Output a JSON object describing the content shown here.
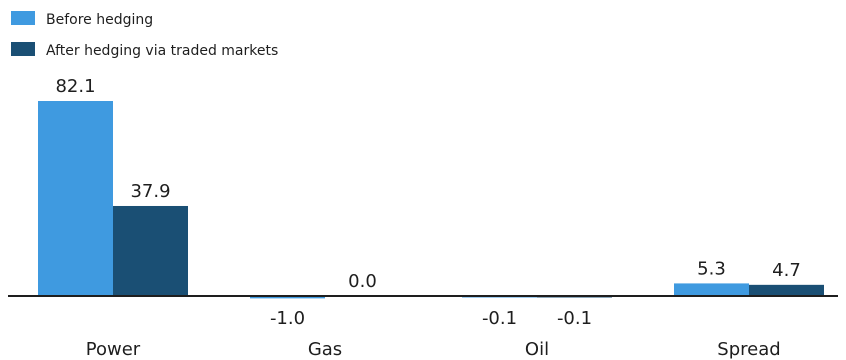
{
  "chart_data": {
    "type": "bar",
    "categories": [
      "Power",
      "Gas",
      "Oil",
      "Spread"
    ],
    "series": [
      {
        "name": "Before hedging",
        "values": [
          82.1,
          -1.0,
          -0.1,
          5.3
        ],
        "color": "#3f9ae0"
      },
      {
        "name": "After hedging via traded markets",
        "values": [
          37.9,
          0.0,
          -0.1,
          4.7
        ],
        "color": "#1a4f74"
      }
    ],
    "value_labels": [
      [
        "82.1",
        "-1.0",
        "-0.1",
        "5.3"
      ],
      [
        "37.9",
        "0.0",
        "-0.1",
        "4.7"
      ]
    ],
    "ylim": [
      -2,
      82.1
    ],
    "legend": "top-left",
    "grid": false,
    "axis_line_color": "#1e1e1e"
  }
}
